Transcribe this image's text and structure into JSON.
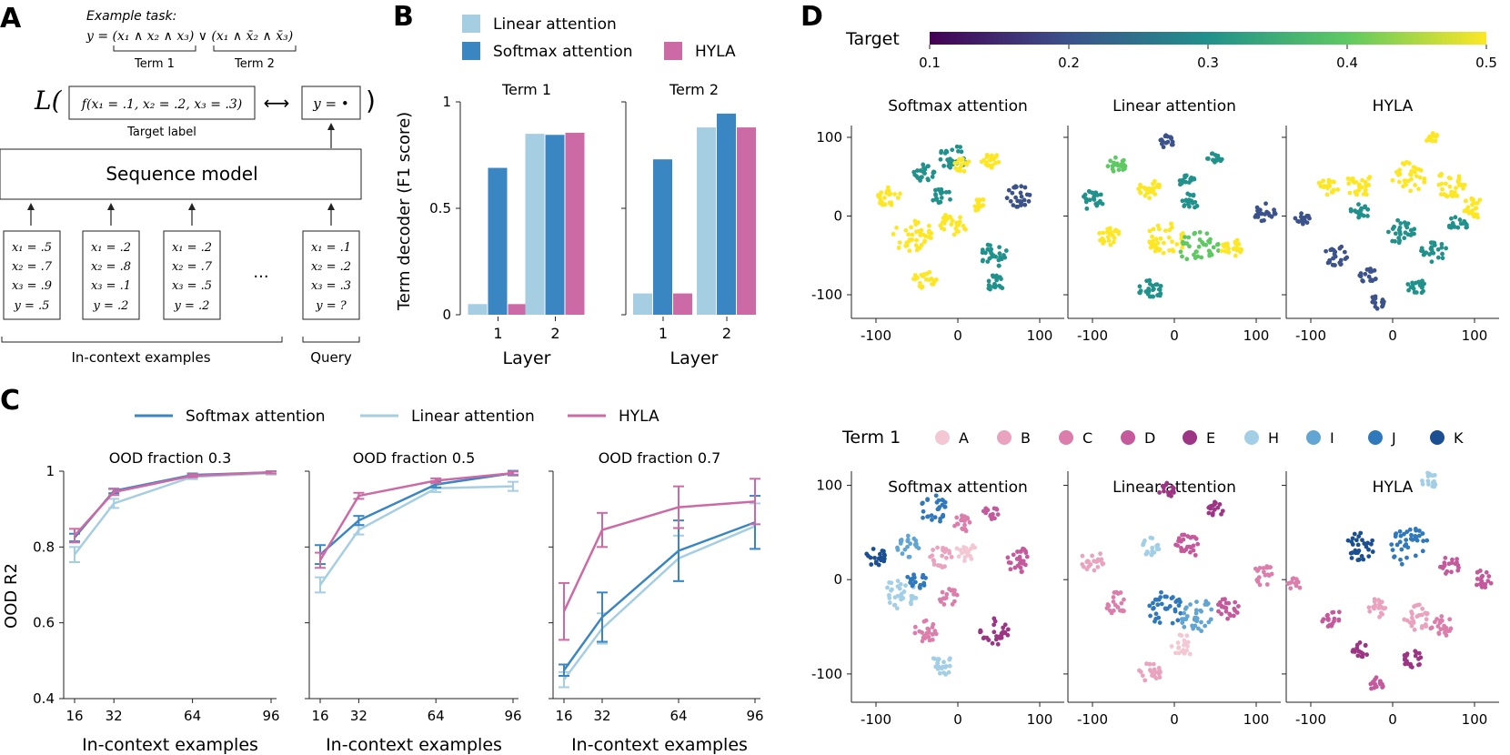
{
  "colors": {
    "linear": "#a6cee3",
    "softmax": "#3a86c2",
    "hyla": "#cc6aa5",
    "axis": "#222222",
    "terms": [
      "#f3c7d3",
      "#e9a3bf",
      "#db7eab",
      "#c45a9c",
      "#9c3584",
      "#a3cfe6",
      "#62a5d2",
      "#2f78bb",
      "#1b4f92"
    ],
    "viridis": [
      "#440154",
      "#3b528b",
      "#21918c",
      "#5ec962",
      "#fde725"
    ]
  },
  "panels": {
    "a": "A",
    "b": "B",
    "c": "C",
    "d": "D"
  },
  "panel_a": {
    "example_task": "Example task:",
    "formula": "y = (x₁ ∧ x₂ ∧ x₃) ∨ (x₁ ∧ x̄₂ ∧ x̄₃)",
    "term1": "Term 1",
    "term2": "Term 2",
    "loss_L": "L(",
    "loss_close": ")",
    "target_expr": "f(x₁ = .1, x₂ = .2, x₃ = .3)",
    "target_label": "Target label",
    "arrow_lr": "⟷",
    "output_expr": "y = •",
    "sequence_model": "Sequence model",
    "examples": [
      [
        "x₁ = .5",
        "x₂ = .7",
        "x₃ = .9",
        "y = .5"
      ],
      [
        "x₁ = .2",
        "x₂ = .8",
        "x₃ = .1",
        "y = .2"
      ],
      [
        "x₁ = .2",
        "x₂ = .7",
        "x₃ = .5",
        "y = .2"
      ]
    ],
    "ellipsis": "...",
    "query": [
      "x₁ = .1",
      "x₂ = .2",
      "x₃ = .3",
      "y = ?"
    ],
    "in_context_label": "In-context examples",
    "query_label": "Query"
  },
  "chart_data": [
    {
      "id": "B",
      "type": "bar",
      "ylabel": "Term decoder (F1 score)",
      "ylim": [
        0,
        1
      ],
      "yticks": [
        "0",
        "0.5",
        "1"
      ],
      "xlabel": "Layer",
      "categories": [
        "1",
        "2"
      ],
      "legend": [
        "Linear attention",
        "Softmax attention",
        "HYLA"
      ],
      "subplots": [
        {
          "title": "Term 1",
          "series": [
            {
              "name": "Linear attention",
              "values": [
                0.05,
                0.85
              ]
            },
            {
              "name": "Softmax attention",
              "values": [
                0.69,
                0.845
              ]
            },
            {
              "name": "HYLA",
              "values": [
                0.05,
                0.855
              ]
            }
          ]
        },
        {
          "title": "Term 2",
          "series": [
            {
              "name": "Linear attention",
              "values": [
                0.1,
                0.88
              ]
            },
            {
              "name": "Softmax attention",
              "values": [
                0.73,
                0.945
              ]
            },
            {
              "name": "HYLA",
              "values": [
                0.1,
                0.88
              ]
            }
          ]
        }
      ]
    },
    {
      "id": "C",
      "type": "line",
      "ylabel": "OOD R2",
      "xlabel": "In-context examples",
      "x": [
        16,
        32,
        64,
        96
      ],
      "xticks": [
        "16",
        "32",
        "64",
        "96"
      ],
      "ylim": [
        0.4,
        1
      ],
      "yticks": [
        "0.4",
        "0.6",
        "0.8",
        "1"
      ],
      "legend": [
        "Softmax attention",
        "Linear attention",
        "HYLA"
      ],
      "subplots": [
        {
          "title": "OOD fraction 0.3",
          "series": [
            {
              "name": "Linear attention",
              "values": [
                0.78,
                0.915,
                0.985,
                0.995
              ],
              "err": [
                0.02,
                0.012,
                0.006,
                0.004
              ]
            },
            {
              "name": "Softmax attention",
              "values": [
                0.825,
                0.948,
                0.99,
                0.997
              ],
              "err": [
                0.01,
                0.006,
                0.004,
                0.003
              ]
            },
            {
              "name": "HYLA",
              "values": [
                0.83,
                0.945,
                0.988,
                0.997
              ],
              "err": [
                0.018,
                0.008,
                0.004,
                0.003
              ]
            }
          ]
        },
        {
          "title": "OOD fraction 0.5",
          "series": [
            {
              "name": "Linear attention",
              "values": [
                0.7,
                0.845,
                0.955,
                0.96
              ],
              "err": [
                0.02,
                0.012,
                0.01,
                0.012
              ]
            },
            {
              "name": "Softmax attention",
              "values": [
                0.78,
                0.87,
                0.965,
                0.995
              ],
              "err": [
                0.025,
                0.012,
                0.008,
                0.006
              ]
            },
            {
              "name": "HYLA",
              "values": [
                0.765,
                0.935,
                0.975,
                0.995
              ],
              "err": [
                0.02,
                0.008,
                0.006,
                0.004
              ]
            }
          ]
        },
        {
          "title": "OOD fraction 0.7",
          "series": [
            {
              "name": "Linear attention",
              "values": [
                0.45,
                0.585,
                0.77,
                0.855
              ],
              "err": [
                0.02,
                0.04,
                0.06,
                0.06
              ]
            },
            {
              "name": "Softmax attention",
              "values": [
                0.475,
                0.615,
                0.79,
                0.865
              ],
              "err": [
                0.015,
                0.065,
                0.08,
                0.07
              ]
            },
            {
              "name": "HYLA",
              "values": [
                0.63,
                0.845,
                0.905,
                0.92
              ],
              "err": [
                0.075,
                0.045,
                0.055,
                0.06
              ]
            }
          ]
        }
      ]
    },
    {
      "id": "D",
      "type": "scatter",
      "colorbar": {
        "label": "Target",
        "ticks": [
          "0.1",
          "0.2",
          "0.3",
          "0.4",
          "0.5"
        ],
        "range": [
          0.1,
          0.5
        ]
      },
      "term_legend": {
        "label": "Term 1",
        "entries": [
          "A",
          "B",
          "C",
          "D",
          "E",
          "H",
          "I",
          "J",
          "K"
        ]
      },
      "axis_ticks": [
        "-100",
        "0",
        "100"
      ],
      "xlim": [
        -130,
        130
      ],
      "ylim": [
        -130,
        115
      ],
      "rows": [
        {
          "color_by": "target",
          "subplots": [
            {
              "title": "Softmax attention",
              "clusters": [
                {
                  "x": -5,
                  "y": 75,
                  "r": 18,
                  "v": 0.3
                },
                {
                  "x": -40,
                  "y": 55,
                  "r": 14,
                  "v": 0.3
                },
                {
                  "x": 5,
                  "y": 65,
                  "r": 10,
                  "v": 0.5
                },
                {
                  "x": 40,
                  "y": 70,
                  "r": 12,
                  "v": 0.5
                },
                {
                  "x": -20,
                  "y": 25,
                  "r": 12,
                  "v": 0.3
                },
                {
                  "x": 75,
                  "y": 25,
                  "r": 16,
                  "v": 0.2
                },
                {
                  "x": -85,
                  "y": 25,
                  "r": 15,
                  "v": 0.5
                },
                {
                  "x": -55,
                  "y": -25,
                  "r": 25,
                  "v": 0.5
                },
                {
                  "x": -5,
                  "y": -10,
                  "r": 17,
                  "v": 0.5
                },
                {
                  "x": 25,
                  "y": 15,
                  "r": 10,
                  "v": 0.5
                },
                {
                  "x": 45,
                  "y": -50,
                  "r": 18,
                  "v": 0.3
                },
                {
                  "x": 45,
                  "y": -85,
                  "r": 12,
                  "v": 0.3
                },
                {
                  "x": -40,
                  "y": -80,
                  "r": 14,
                  "v": 0.5
                }
              ]
            },
            {
              "title": "Linear attention",
              "clusters": [
                {
                  "x": -10,
                  "y": 95,
                  "r": 10,
                  "v": 0.2
                },
                {
                  "x": 50,
                  "y": 75,
                  "r": 10,
                  "v": 0.3
                },
                {
                  "x": -70,
                  "y": 65,
                  "r": 12,
                  "v": 0.4
                },
                {
                  "x": 15,
                  "y": 45,
                  "r": 10,
                  "v": 0.3
                },
                {
                  "x": -30,
                  "y": 35,
                  "r": 15,
                  "v": 0.5
                },
                {
                  "x": -100,
                  "y": 20,
                  "r": 15,
                  "v": 0.3
                },
                {
                  "x": -80,
                  "y": -25,
                  "r": 14,
                  "v": 0.5
                },
                {
                  "x": 110,
                  "y": 5,
                  "r": 14,
                  "v": 0.2
                },
                {
                  "x": -10,
                  "y": -30,
                  "r": 25,
                  "v": 0.5
                },
                {
                  "x": 30,
                  "y": -40,
                  "r": 25,
                  "v": 0.4
                },
                {
                  "x": 70,
                  "y": -40,
                  "r": 14,
                  "v": 0.5
                },
                {
                  "x": -30,
                  "y": -95,
                  "r": 16,
                  "v": 0.3
                },
                {
                  "x": 20,
                  "y": 20,
                  "r": 12,
                  "v": 0.3
                }
              ]
            },
            {
              "title": "HYLA",
              "clusters": [
                {
                  "x": 45,
                  "y": 100,
                  "r": 10,
                  "v": 0.5
                },
                {
                  "x": 20,
                  "y": 50,
                  "r": 22,
                  "v": 0.5
                },
                {
                  "x": -40,
                  "y": 40,
                  "r": 18,
                  "v": 0.5
                },
                {
                  "x": 70,
                  "y": 40,
                  "r": 20,
                  "v": 0.5
                },
                {
                  "x": 100,
                  "y": 10,
                  "r": 16,
                  "v": 0.5
                },
                {
                  "x": -80,
                  "y": 35,
                  "r": 14,
                  "v": 0.5
                },
                {
                  "x": -110,
                  "y": -5,
                  "r": 10,
                  "v": 0.2
                },
                {
                  "x": -70,
                  "y": -50,
                  "r": 15,
                  "v": 0.2
                },
                {
                  "x": -40,
                  "y": 5,
                  "r": 12,
                  "v": 0.3
                },
                {
                  "x": 10,
                  "y": -20,
                  "r": 18,
                  "v": 0.3
                },
                {
                  "x": 50,
                  "y": -45,
                  "r": 16,
                  "v": 0.3
                },
                {
                  "x": 80,
                  "y": -10,
                  "r": 12,
                  "v": 0.3
                },
                {
                  "x": -30,
                  "y": -75,
                  "r": 12,
                  "v": 0.2
                },
                {
                  "x": -20,
                  "y": -110,
                  "r": 10,
                  "v": 0.2
                },
                {
                  "x": 30,
                  "y": -90,
                  "r": 12,
                  "v": 0.3
                }
              ]
            }
          ]
        },
        {
          "color_by": "term",
          "subplots": [
            {
              "title": "Softmax attention",
              "clusters": [
                {
                  "x": -30,
                  "y": 75,
                  "r": 18,
                  "t": 7
                },
                {
                  "x": 5,
                  "y": 60,
                  "r": 12,
                  "t": 2
                },
                {
                  "x": 40,
                  "y": 70,
                  "r": 10,
                  "t": 3
                },
                {
                  "x": -60,
                  "y": 35,
                  "r": 14,
                  "t": 6
                },
                {
                  "x": -20,
                  "y": 25,
                  "r": 14,
                  "t": 1
                },
                {
                  "x": 10,
                  "y": 30,
                  "r": 12,
                  "t": 0
                },
                {
                  "x": -100,
                  "y": 25,
                  "r": 12,
                  "t": 8
                },
                {
                  "x": 75,
                  "y": 20,
                  "r": 16,
                  "t": 3
                },
                {
                  "x": -70,
                  "y": -15,
                  "r": 20,
                  "t": 5
                },
                {
                  "x": -40,
                  "y": -55,
                  "r": 14,
                  "t": 2
                },
                {
                  "x": -10,
                  "y": -20,
                  "r": 12,
                  "t": 2
                },
                {
                  "x": 45,
                  "y": -55,
                  "r": 18,
                  "t": 4
                },
                {
                  "x": -20,
                  "y": -90,
                  "r": 14,
                  "t": 5
                },
                {
                  "x": -50,
                  "y": 0,
                  "r": 12,
                  "t": 7
                }
              ]
            },
            {
              "title": "Linear attention",
              "clusters": [
                {
                  "x": -10,
                  "y": 95,
                  "r": 10,
                  "t": 4
                },
                {
                  "x": 50,
                  "y": 75,
                  "r": 10,
                  "t": 4
                },
                {
                  "x": -30,
                  "y": 35,
                  "r": 12,
                  "t": 5
                },
                {
                  "x": 15,
                  "y": 35,
                  "r": 16,
                  "t": 3
                },
                {
                  "x": -100,
                  "y": 20,
                  "r": 14,
                  "t": 1
                },
                {
                  "x": -70,
                  "y": -25,
                  "r": 14,
                  "t": 2
                },
                {
                  "x": 110,
                  "y": 5,
                  "r": 14,
                  "t": 2
                },
                {
                  "x": -10,
                  "y": -30,
                  "r": 22,
                  "t": 7
                },
                {
                  "x": 30,
                  "y": -40,
                  "r": 22,
                  "t": 6
                },
                {
                  "x": 65,
                  "y": -30,
                  "r": 14,
                  "t": 3
                },
                {
                  "x": -30,
                  "y": -100,
                  "r": 14,
                  "t": 1
                },
                {
                  "x": 10,
                  "y": -70,
                  "r": 14,
                  "t": 0
                }
              ]
            },
            {
              "title": "HYLA",
              "clusters": [
                {
                  "x": 45,
                  "y": 105,
                  "r": 10,
                  "t": 5
                },
                {
                  "x": 20,
                  "y": 35,
                  "r": 24,
                  "t": 7
                },
                {
                  "x": -40,
                  "y": 35,
                  "r": 18,
                  "t": 8
                },
                {
                  "x": 70,
                  "y": 15,
                  "r": 12,
                  "t": 3
                },
                {
                  "x": 110,
                  "y": 0,
                  "r": 12,
                  "t": 3
                },
                {
                  "x": -120,
                  "y": -5,
                  "r": 8,
                  "t": 2
                },
                {
                  "x": -75,
                  "y": -40,
                  "r": 12,
                  "t": 3
                },
                {
                  "x": -20,
                  "y": -30,
                  "r": 12,
                  "t": 1
                },
                {
                  "x": 30,
                  "y": -40,
                  "r": 16,
                  "t": 1
                },
                {
                  "x": 60,
                  "y": -50,
                  "r": 14,
                  "t": 2
                },
                {
                  "x": -40,
                  "y": -75,
                  "r": 10,
                  "t": 4
                },
                {
                  "x": -20,
                  "y": -110,
                  "r": 10,
                  "t": 3
                },
                {
                  "x": 25,
                  "y": -85,
                  "r": 12,
                  "t": 4
                }
              ]
            }
          ]
        }
      ]
    }
  ]
}
